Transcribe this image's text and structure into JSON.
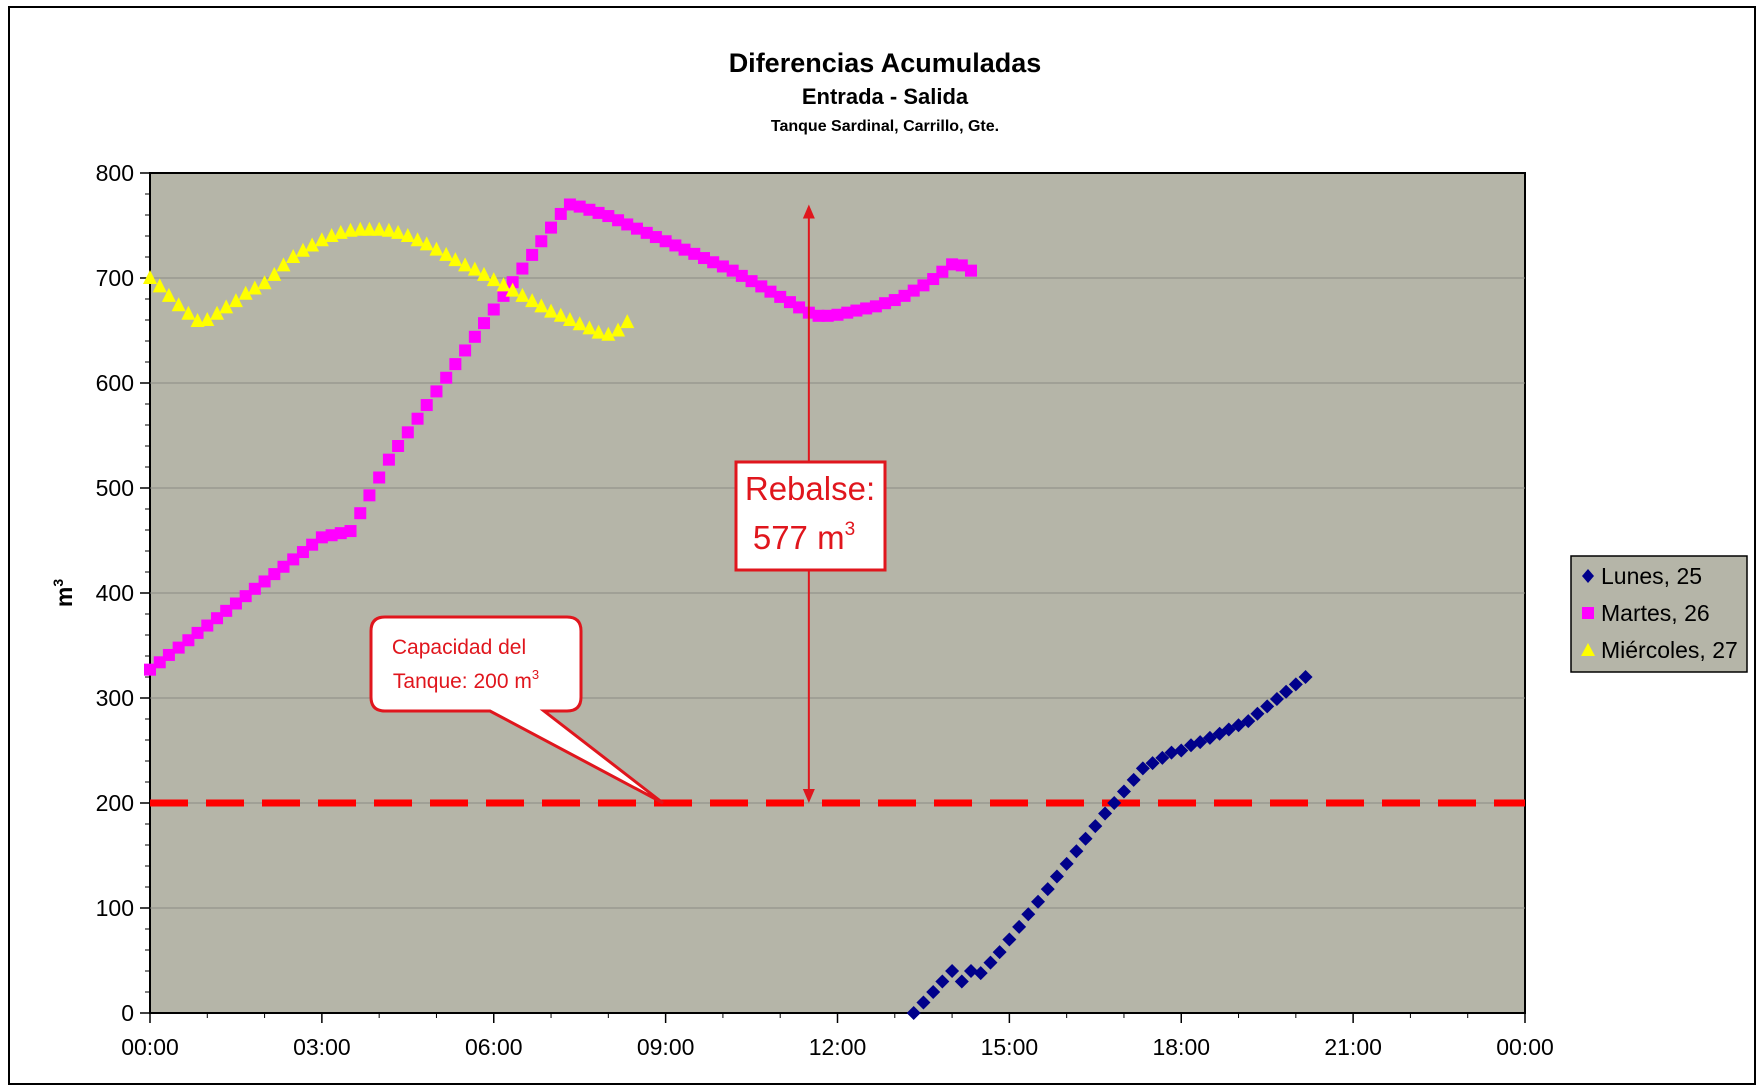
{
  "chart_data": {
    "type": "scatter",
    "title": "Diferencias Acumuladas",
    "subtitle": "Entrada - Salida",
    "subsubtitle": "Tanque Sardinal, Carrillo, Gte.",
    "ylabel": "m",
    "ylabel_sup": "3",
    "xlabel": "",
    "x_unit": "hours",
    "xlim": [
      0,
      24
    ],
    "ylim": [
      0,
      800
    ],
    "x_ticks": [
      0,
      3,
      6,
      9,
      12,
      15,
      18,
      21,
      24
    ],
    "x_tick_labels": [
      "00:00",
      "03:00",
      "06:00",
      "09:00",
      "12:00",
      "15:00",
      "18:00",
      "21:00",
      "00:00"
    ],
    "y_ticks": [
      0,
      100,
      200,
      300,
      400,
      500,
      600,
      700,
      800
    ],
    "y_tick_labels": [
      "0",
      "100",
      "200",
      "300",
      "400",
      "500",
      "600",
      "700",
      "800"
    ],
    "grid": "horizontal",
    "plot_background": "#b5b5a8",
    "legend_position": "right",
    "reference_line": {
      "y": 200,
      "color": "#ff0000",
      "style": "dashed"
    },
    "annotations": {
      "capacity_line1": "Capacidad del",
      "capacity_line2": "Tanque: 200 m",
      "capacity_sup": "3",
      "rebalse_line1": "Rebalse:",
      "rebalse_line2": "577 m",
      "rebalse_sup": "3",
      "rebalse_x": 11.5,
      "rebalse_from": 200,
      "rebalse_to": 770
    },
    "series": [
      {
        "name": "Lunes, 25",
        "color": "#00008b",
        "marker": "diamond",
        "points": [
          [
            13.33,
            0
          ],
          [
            13.5,
            10
          ],
          [
            13.67,
            20
          ],
          [
            13.83,
            30
          ],
          [
            14.0,
            40
          ],
          [
            14.17,
            30
          ],
          [
            14.33,
            40
          ],
          [
            14.5,
            38
          ],
          [
            14.67,
            48
          ],
          [
            14.83,
            58
          ],
          [
            15.0,
            70
          ],
          [
            15.17,
            82
          ],
          [
            15.33,
            94
          ],
          [
            15.5,
            106
          ],
          [
            15.67,
            118
          ],
          [
            15.83,
            130
          ],
          [
            16.0,
            142
          ],
          [
            16.17,
            154
          ],
          [
            16.33,
            166
          ],
          [
            16.5,
            178
          ],
          [
            16.67,
            190
          ],
          [
            16.83,
            200
          ],
          [
            17.0,
            211
          ],
          [
            17.17,
            222
          ],
          [
            17.33,
            233
          ],
          [
            17.5,
            238
          ],
          [
            17.67,
            243
          ],
          [
            17.83,
            248
          ],
          [
            18.0,
            250
          ],
          [
            18.17,
            255
          ],
          [
            18.33,
            258
          ],
          [
            18.5,
            262
          ],
          [
            18.67,
            266
          ],
          [
            18.83,
            270
          ],
          [
            19.0,
            274
          ],
          [
            19.17,
            278
          ],
          [
            19.33,
            285
          ],
          [
            19.5,
            292
          ],
          [
            19.67,
            299
          ],
          [
            19.83,
            306
          ],
          [
            20.0,
            313
          ],
          [
            20.17,
            320
          ]
        ]
      },
      {
        "name": "Martes, 26",
        "color": "#ff00ff",
        "marker": "square",
        "points": [
          [
            0.0,
            327
          ],
          [
            0.17,
            334
          ],
          [
            0.33,
            341
          ],
          [
            0.5,
            348
          ],
          [
            0.67,
            355
          ],
          [
            0.83,
            362
          ],
          [
            1.0,
            369
          ],
          [
            1.17,
            376
          ],
          [
            1.33,
            383
          ],
          [
            1.5,
            390
          ],
          [
            1.67,
            397
          ],
          [
            1.83,
            404
          ],
          [
            2.0,
            411
          ],
          [
            2.17,
            418
          ],
          [
            2.33,
            425
          ],
          [
            2.5,
            432
          ],
          [
            2.67,
            439
          ],
          [
            2.83,
            446
          ],
          [
            3.0,
            453
          ],
          [
            3.17,
            455
          ],
          [
            3.33,
            457
          ],
          [
            3.5,
            459
          ],
          [
            3.67,
            476
          ],
          [
            3.83,
            493
          ],
          [
            4.0,
            510
          ],
          [
            4.17,
            527
          ],
          [
            4.33,
            540
          ],
          [
            4.5,
            553
          ],
          [
            4.67,
            566
          ],
          [
            4.83,
            579
          ],
          [
            5.0,
            592
          ],
          [
            5.17,
            605
          ],
          [
            5.33,
            618
          ],
          [
            5.5,
            631
          ],
          [
            5.67,
            644
          ],
          [
            5.83,
            657
          ],
          [
            6.0,
            670
          ],
          [
            6.17,
            683
          ],
          [
            6.33,
            696
          ],
          [
            6.5,
            709
          ],
          [
            6.67,
            722
          ],
          [
            6.83,
            735
          ],
          [
            7.0,
            748
          ],
          [
            7.17,
            761
          ],
          [
            7.33,
            770
          ],
          [
            7.5,
            768
          ],
          [
            7.67,
            765
          ],
          [
            7.83,
            762
          ],
          [
            8.0,
            759
          ],
          [
            8.17,
            755
          ],
          [
            8.33,
            751
          ],
          [
            8.5,
            747
          ],
          [
            8.67,
            743
          ],
          [
            8.83,
            739
          ],
          [
            9.0,
            735
          ],
          [
            9.17,
            731
          ],
          [
            9.33,
            727
          ],
          [
            9.5,
            723
          ],
          [
            9.67,
            719
          ],
          [
            9.83,
            715
          ],
          [
            10.0,
            711
          ],
          [
            10.17,
            707
          ],
          [
            10.33,
            702
          ],
          [
            10.5,
            697
          ],
          [
            10.67,
            692
          ],
          [
            10.83,
            687
          ],
          [
            11.0,
            682
          ],
          [
            11.17,
            677
          ],
          [
            11.33,
            672
          ],
          [
            11.5,
            667
          ],
          [
            11.67,
            664
          ],
          [
            11.83,
            664
          ],
          [
            12.0,
            665
          ],
          [
            12.17,
            667
          ],
          [
            12.33,
            669
          ],
          [
            12.5,
            671
          ],
          [
            12.67,
            673
          ],
          [
            12.83,
            676
          ],
          [
            13.0,
            679
          ],
          [
            13.17,
            683
          ],
          [
            13.33,
            688
          ],
          [
            13.5,
            693
          ],
          [
            13.67,
            699
          ],
          [
            13.83,
            706
          ],
          [
            14.0,
            713
          ],
          [
            14.17,
            712
          ],
          [
            14.33,
            707
          ]
        ]
      },
      {
        "name": "Miércoles, 27",
        "color": "#ffff00",
        "marker": "triangle",
        "points": [
          [
            0.0,
            700
          ],
          [
            0.17,
            692
          ],
          [
            0.33,
            683
          ],
          [
            0.5,
            674
          ],
          [
            0.67,
            666
          ],
          [
            0.83,
            659
          ],
          [
            1.0,
            660
          ],
          [
            1.17,
            666
          ],
          [
            1.33,
            672
          ],
          [
            1.5,
            678
          ],
          [
            1.67,
            685
          ],
          [
            1.83,
            690
          ],
          [
            2.0,
            695
          ],
          [
            2.17,
            703
          ],
          [
            2.33,
            712
          ],
          [
            2.5,
            720
          ],
          [
            2.67,
            726
          ],
          [
            2.83,
            731
          ],
          [
            3.0,
            736
          ],
          [
            3.17,
            740
          ],
          [
            3.33,
            743
          ],
          [
            3.5,
            745
          ],
          [
            3.67,
            746
          ],
          [
            3.83,
            746
          ],
          [
            4.0,
            746
          ],
          [
            4.17,
            745
          ],
          [
            4.33,
            743
          ],
          [
            4.5,
            740
          ],
          [
            4.67,
            736
          ],
          [
            4.83,
            732
          ],
          [
            5.0,
            727
          ],
          [
            5.17,
            722
          ],
          [
            5.33,
            717
          ],
          [
            5.5,
            712
          ],
          [
            5.67,
            708
          ],
          [
            5.83,
            703
          ],
          [
            6.0,
            698
          ],
          [
            6.17,
            693
          ],
          [
            6.33,
            688
          ],
          [
            6.5,
            683
          ],
          [
            6.67,
            678
          ],
          [
            6.83,
            673
          ],
          [
            7.0,
            668
          ],
          [
            7.17,
            664
          ],
          [
            7.33,
            660
          ],
          [
            7.5,
            656
          ],
          [
            7.67,
            652
          ],
          [
            7.83,
            648
          ],
          [
            8.0,
            646
          ],
          [
            8.17,
            650
          ],
          [
            8.33,
            658
          ]
        ]
      }
    ]
  }
}
